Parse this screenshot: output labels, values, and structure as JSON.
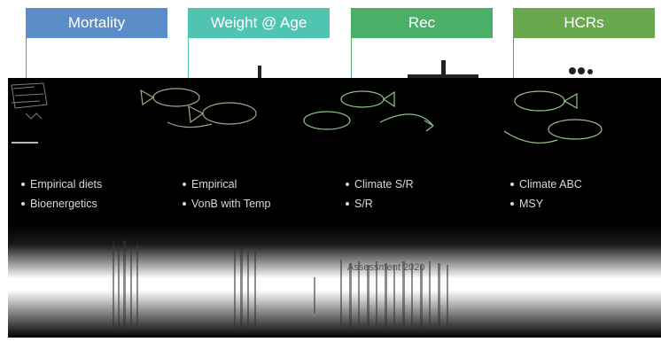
{
  "tabs": [
    {
      "label": "Mortality",
      "color": "#5b8ec9"
    },
    {
      "label": "Weight @ Age",
      "color": "#4fc4b0"
    },
    {
      "label": "Rec",
      "color": "#4caf68"
    },
    {
      "label": "HCRs",
      "color": "#6aa84f"
    }
  ],
  "columns": [
    {
      "items": [
        "Empirical diets",
        "Bioenergetics"
      ]
    },
    {
      "items": [
        "Empirical",
        "VonB with Temp"
      ]
    },
    {
      "items": [
        "Climate S/R",
        "S/R"
      ]
    },
    {
      "items": [
        "Climate ABC",
        "MSY"
      ]
    }
  ],
  "bottom_label": "Assessment 2020"
}
